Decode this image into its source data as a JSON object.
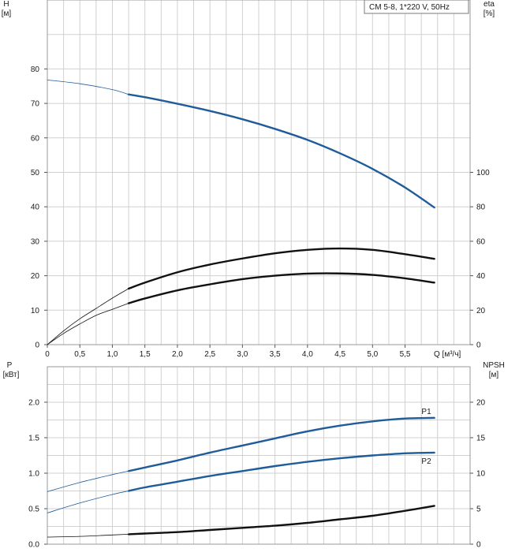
{
  "chart_data": [
    {
      "type": "line",
      "title": "CM 5-8, 1*220 V, 50Hz",
      "ylabel_left": "H",
      "ylabel_left_unit": "[м]",
      "ylabel_right": "eta",
      "ylabel_right_unit": "[%]",
      "xlabel": "Q [м³/ч]",
      "xlim": [
        0,
        6.5
      ],
      "ylim_left": [
        0,
        100
      ],
      "ylim_right_ticks": [
        0,
        20,
        40,
        60,
        80,
        100
      ],
      "xticks": [
        "0",
        "0,5",
        "1,0",
        "1,5",
        "2,0",
        "2,5",
        "3,0",
        "3,5",
        "4,0",
        "4,5",
        "5,0",
        "5,5"
      ],
      "yticks_left": [
        "0",
        "10",
        "20",
        "30",
        "40",
        "50",
        "60",
        "70",
        "80"
      ],
      "yticks_right": [
        "0",
        "20",
        "40",
        "60",
        "80",
        "100"
      ],
      "grid": true,
      "series": [
        {
          "key": "H",
          "axis": "left",
          "color": "#1f5c99",
          "x": [
            0,
            0.5,
            1.0,
            1.25,
            1.5,
            2.0,
            2.5,
            3.0,
            3.5,
            4.0,
            4.5,
            5.0,
            5.5,
            5.95
          ],
          "y": [
            76.8,
            75.7,
            74.0,
            72.6,
            71.8,
            69.9,
            67.8,
            65.4,
            62.6,
            59.4,
            55.5,
            51.0,
            45.6,
            39.8
          ],
          "operating_from": 1.25
        },
        {
          "key": "eta_pump",
          "axis": "right",
          "color": "#111111",
          "x": [
            0,
            0.25,
            0.5,
            0.75,
            1.0,
            1.25,
            1.5,
            2.0,
            2.5,
            3.0,
            3.5,
            4.0,
            4.5,
            5.0,
            5.5,
            5.95
          ],
          "y": [
            0,
            8,
            15,
            21,
            27,
            32.5,
            36,
            42,
            46.5,
            50,
            53,
            55,
            55.8,
            55,
            52.5,
            49.8
          ],
          "operating_from": 1.25
        },
        {
          "key": "eta_total",
          "axis": "right",
          "color": "#111111",
          "x": [
            0,
            0.25,
            0.5,
            0.75,
            1.0,
            1.25,
            1.5,
            2.0,
            2.5,
            3.0,
            3.5,
            4.0,
            4.5,
            5.0,
            5.5,
            5.95
          ],
          "y": [
            0,
            6.5,
            12,
            17,
            20.5,
            24,
            26.8,
            31.5,
            35,
            38,
            40,
            41.2,
            41.3,
            40.5,
            38.5,
            36
          ],
          "operating_from": 1.25
        }
      ]
    },
    {
      "type": "line",
      "ylabel_left": "P",
      "ylabel_left_unit": "[кВт]",
      "ylabel_right": "NPSH",
      "ylabel_right_unit": "[м]",
      "xlim": [
        0,
        6.5
      ],
      "ylim_left": [
        0,
        2.5
      ],
      "yticks_left": [
        "0.0",
        "0.5",
        "1.0",
        "1.5",
        "2.0"
      ],
      "yticks_right": [
        "0",
        "5",
        "10",
        "15",
        "20"
      ],
      "grid": true,
      "series": [
        {
          "name": "P1",
          "axis": "left",
          "color": "#1f5c99",
          "x": [
            0,
            0.5,
            1.0,
            1.25,
            1.5,
            2.0,
            2.5,
            3.0,
            3.5,
            4.0,
            4.5,
            5.0,
            5.5,
            5.95
          ],
          "y": [
            0.74,
            0.87,
            0.98,
            1.03,
            1.08,
            1.18,
            1.29,
            1.39,
            1.49,
            1.59,
            1.67,
            1.73,
            1.77,
            1.78
          ],
          "operating_from": 1.25
        },
        {
          "name": "P2",
          "axis": "left",
          "color": "#1f5c99",
          "x": [
            0,
            0.5,
            1.0,
            1.25,
            1.5,
            2.0,
            2.5,
            3.0,
            3.5,
            4.0,
            4.5,
            5.0,
            5.5,
            5.95
          ],
          "y": [
            0.44,
            0.58,
            0.7,
            0.75,
            0.8,
            0.88,
            0.96,
            1.03,
            1.1,
            1.16,
            1.21,
            1.25,
            1.28,
            1.29
          ],
          "operating_from": 1.25
        },
        {
          "key": "NPSH",
          "axis": "left",
          "color": "#111111",
          "x": [
            0,
            0.5,
            1.0,
            1.25,
            1.5,
            2.0,
            2.5,
            3.0,
            3.5,
            4.0,
            4.5,
            5.0,
            5.5,
            5.95
          ],
          "y": [
            0.1,
            0.11,
            0.13,
            0.14,
            0.15,
            0.17,
            0.2,
            0.23,
            0.26,
            0.3,
            0.35,
            0.4,
            0.47,
            0.54
          ],
          "operating_from": 1.25
        }
      ]
    }
  ]
}
